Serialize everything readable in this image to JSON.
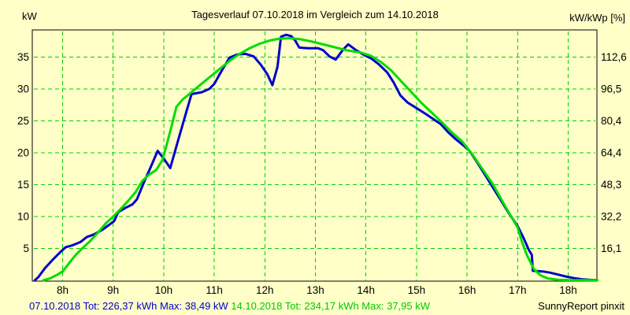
{
  "header": {
    "left_axis_unit": "kW",
    "right_axis_unit": "kW/kWp [%]"
  },
  "chart_data": {
    "type": "line",
    "title": "Tagesverlauf 07.10.2018 im Vergleich zum 14.10.2018",
    "xlabel": "",
    "ylabel": "kW",
    "ylabel_right": "kW/kWp [%]",
    "grid": true,
    "ylim": [
      0,
      39.2
    ],
    "xlim_hours": [
      7.4,
      18.6
    ],
    "x_ticks": [
      {
        "hour": 8,
        "label": "8h"
      },
      {
        "hour": 9,
        "label": "9h"
      },
      {
        "hour": 10,
        "label": "10h"
      },
      {
        "hour": 11,
        "label": "11h"
      },
      {
        "hour": 12,
        "label": "12h"
      },
      {
        "hour": 13,
        "label": "13h"
      },
      {
        "hour": 14,
        "label": "14h"
      },
      {
        "hour": 15,
        "label": "15h"
      },
      {
        "hour": 16,
        "label": "16h"
      },
      {
        "hour": 17,
        "label": "17h"
      },
      {
        "hour": 18,
        "label": "18h"
      }
    ],
    "y_ticks": [
      {
        "kw": 5,
        "left_label": "5",
        "right_label": "16,1"
      },
      {
        "kw": 10,
        "left_label": "10",
        "right_label": "32,2"
      },
      {
        "kw": 15,
        "left_label": "15",
        "right_label": "48,3"
      },
      {
        "kw": 20,
        "left_label": "20",
        "right_label": "64,4"
      },
      {
        "kw": 25,
        "left_label": "25",
        "right_label": "80,4"
      },
      {
        "kw": 30,
        "left_label": "30",
        "right_label": "96,5"
      },
      {
        "kw": 35,
        "left_label": "35",
        "right_label": "112,6"
      }
    ],
    "series": [
      {
        "name": "07.10.2018",
        "color_key": "blue",
        "total_kwh": "226,37",
        "max_kw": "38,49",
        "points": [
          [
            7.45,
            0
          ],
          [
            7.52,
            0.5
          ],
          [
            7.65,
            1.9
          ],
          [
            7.8,
            3.2
          ],
          [
            7.95,
            4.4
          ],
          [
            8.06,
            5.2
          ],
          [
            8.2,
            5.5
          ],
          [
            8.35,
            6.0
          ],
          [
            8.48,
            6.8
          ],
          [
            8.62,
            7.2
          ],
          [
            8.78,
            7.9
          ],
          [
            8.92,
            8.7
          ],
          [
            9.02,
            9.3
          ],
          [
            9.1,
            10.7
          ],
          [
            9.25,
            11.4
          ],
          [
            9.38,
            11.9
          ],
          [
            9.47,
            12.7
          ],
          [
            9.6,
            15.2
          ],
          [
            9.75,
            17.9
          ],
          [
            9.88,
            20.3
          ],
          [
            10.0,
            19.1
          ],
          [
            10.13,
            17.6
          ],
          [
            10.3,
            22.4
          ],
          [
            10.45,
            26.5
          ],
          [
            10.55,
            29.2
          ],
          [
            10.75,
            29.5
          ],
          [
            10.9,
            30.0
          ],
          [
            11.0,
            30.8
          ],
          [
            11.15,
            32.9
          ],
          [
            11.3,
            34.9
          ],
          [
            11.45,
            35.4
          ],
          [
            11.62,
            35.5
          ],
          [
            11.78,
            35.1
          ],
          [
            11.92,
            33.8
          ],
          [
            12.05,
            32.3
          ],
          [
            12.15,
            30.6
          ],
          [
            12.25,
            33.5
          ],
          [
            12.32,
            38.2
          ],
          [
            12.42,
            38.49
          ],
          [
            12.52,
            38.3
          ],
          [
            12.6,
            37.6
          ],
          [
            12.68,
            36.5
          ],
          [
            12.85,
            36.4
          ],
          [
            13.05,
            36.4
          ],
          [
            13.15,
            36.1
          ],
          [
            13.28,
            35.1
          ],
          [
            13.4,
            34.6
          ],
          [
            13.55,
            36.2
          ],
          [
            13.65,
            37.0
          ],
          [
            13.8,
            36.1
          ],
          [
            13.95,
            35.4
          ],
          [
            14.1,
            34.8
          ],
          [
            14.25,
            33.9
          ],
          [
            14.42,
            32.6
          ],
          [
            14.55,
            31.0
          ],
          [
            14.68,
            29.0
          ],
          [
            14.82,
            27.9
          ],
          [
            15.0,
            27.0
          ],
          [
            15.18,
            26.1
          ],
          [
            15.33,
            25.3
          ],
          [
            15.48,
            24.5
          ],
          [
            15.63,
            23.2
          ],
          [
            15.78,
            22.1
          ],
          [
            15.92,
            21.2
          ],
          [
            16.05,
            20.3
          ],
          [
            16.2,
            18.5
          ],
          [
            16.35,
            16.6
          ],
          [
            16.5,
            14.7
          ],
          [
            16.65,
            12.8
          ],
          [
            16.82,
            10.6
          ],
          [
            17.0,
            8.5
          ],
          [
            17.12,
            6.6
          ],
          [
            17.22,
            4.8
          ],
          [
            17.28,
            4.0
          ],
          [
            17.3,
            1.5
          ],
          [
            17.5,
            1.4
          ],
          [
            17.65,
            1.2
          ],
          [
            17.8,
            0.9
          ],
          [
            17.98,
            0.55
          ],
          [
            18.12,
            0.35
          ],
          [
            18.3,
            0.15
          ],
          [
            18.5,
            0.05
          ],
          [
            18.56,
            0.03
          ]
        ]
      },
      {
        "name": "14.10.2018",
        "color_key": "green",
        "total_kwh": "234,17",
        "max_kw": "37,95",
        "points": [
          [
            7.62,
            0
          ],
          [
            7.75,
            0.3
          ],
          [
            7.9,
            0.9
          ],
          [
            8.0,
            1.4
          ],
          [
            8.12,
            2.6
          ],
          [
            8.25,
            3.9
          ],
          [
            8.4,
            5.1
          ],
          [
            8.55,
            6.2
          ],
          [
            8.7,
            7.5
          ],
          [
            8.85,
            8.9
          ],
          [
            9.0,
            10.0
          ],
          [
            9.15,
            11.2
          ],
          [
            9.3,
            12.5
          ],
          [
            9.45,
            13.9
          ],
          [
            9.58,
            15.6
          ],
          [
            9.7,
            16.5
          ],
          [
            9.85,
            17.3
          ],
          [
            9.97,
            18.8
          ],
          [
            10.05,
            21.0
          ],
          [
            10.15,
            24.0
          ],
          [
            10.25,
            27.2
          ],
          [
            10.38,
            28.4
          ],
          [
            10.52,
            29.3
          ],
          [
            10.7,
            30.5
          ],
          [
            10.9,
            31.8
          ],
          [
            11.1,
            33.1
          ],
          [
            11.3,
            34.4
          ],
          [
            11.5,
            35.5
          ],
          [
            11.7,
            36.4
          ],
          [
            11.9,
            37.1
          ],
          [
            12.1,
            37.6
          ],
          [
            12.3,
            37.9
          ],
          [
            12.5,
            37.95
          ],
          [
            12.7,
            37.8
          ],
          [
            12.9,
            37.5
          ],
          [
            13.1,
            37.1
          ],
          [
            13.35,
            36.6
          ],
          [
            13.6,
            36.1
          ],
          [
            13.9,
            35.7
          ],
          [
            14.1,
            35.2
          ],
          [
            14.3,
            34.2
          ],
          [
            14.5,
            32.9
          ],
          [
            14.7,
            31.2
          ],
          [
            14.9,
            29.5
          ],
          [
            15.1,
            27.8
          ],
          [
            15.3,
            26.3
          ],
          [
            15.5,
            24.8
          ],
          [
            15.7,
            23.2
          ],
          [
            15.9,
            21.8
          ],
          [
            16.1,
            19.8
          ],
          [
            16.3,
            17.5
          ],
          [
            16.5,
            15.2
          ],
          [
            16.7,
            12.4
          ],
          [
            16.85,
            10.3
          ],
          [
            17.0,
            8.3
          ],
          [
            17.08,
            6.2
          ],
          [
            17.18,
            4.0
          ],
          [
            17.32,
            1.8
          ],
          [
            17.45,
            0.8
          ],
          [
            17.6,
            0.3
          ],
          [
            17.8,
            0.1
          ],
          [
            18.0,
            0.05
          ],
          [
            18.58,
            0.03
          ]
        ]
      }
    ]
  },
  "footer": {
    "series1": "07.10.2018 Tot: 226,37 kWh Max: 38,49 kW",
    "series2": "14.10.2018 Tot: 234,17 kWh Max: 37,95 kW",
    "watermark": "SunnyReport pinxit"
  },
  "colors": {
    "background": "#FFFFC8",
    "grid": "#00CE00",
    "border": "#000000",
    "blue": "#0000CD",
    "green": "#00DC00",
    "footer_blue": "#0000CC",
    "footer_green": "#00C800"
  }
}
